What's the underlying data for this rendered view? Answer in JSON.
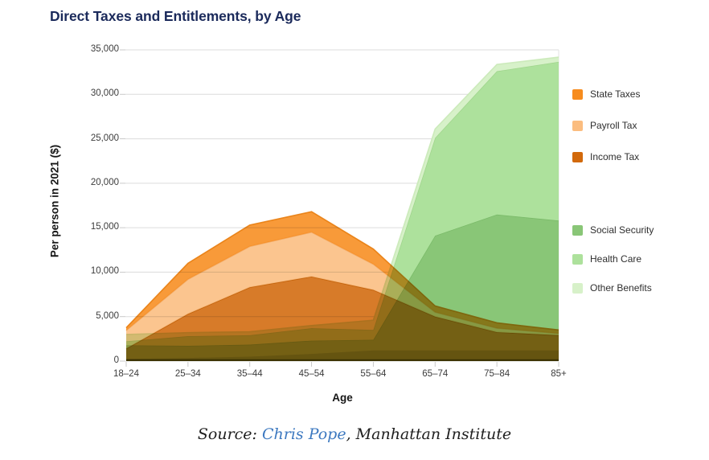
{
  "page": {
    "title": "Direct Taxes and Entitlements, by Age"
  },
  "axes": {
    "y_label": "Per person in 2021 ($)",
    "x_label": "Age",
    "ytick_labels": [
      "0",
      "5,000",
      "10,000",
      "15,000",
      "20,000",
      "25,000",
      "30,000",
      "35,000"
    ]
  },
  "legend": {
    "taxes": [
      {
        "label": "State Taxes",
        "color": "#F78C1E"
      },
      {
        "label": "Payroll Tax",
        "color": "#FBBD7F"
      },
      {
        "label": "Income Tax",
        "color": "#D2690B"
      }
    ],
    "benefits": [
      {
        "label": "Social Security",
        "color": "#89C677"
      },
      {
        "label": "Health Care",
        "color": "#ADE19C"
      },
      {
        "label": "Other Benefits",
        "color": "#D7F1C9"
      }
    ]
  },
  "source": {
    "prefix": "Source: ",
    "link_text": "Chris Pope",
    "suffix": ", Manhattan Institute",
    "link_color": "#3D79C0"
  },
  "chart_data": {
    "type": "area",
    "title": "Direct Taxes and Entitlements, by Age",
    "xlabel": "Age",
    "ylabel": "Per person in 2021 ($)",
    "categories": [
      "18–24",
      "25–34",
      "35–44",
      "45–54",
      "55–64",
      "65–74",
      "75–84",
      "85+"
    ],
    "ylim": [
      0,
      35000
    ],
    "yticks": [
      0,
      5000,
      10000,
      15000,
      20000,
      25000,
      30000,
      35000
    ],
    "grid": true,
    "legend_position": "right",
    "stacking": "two stacked groups (benefits greens, taxes oranges) overlaid; taxes drawn translucent/multiply over benefits",
    "groups": [
      {
        "name": "benefits",
        "blend": "normal",
        "fill_opacity": 1,
        "series": [
          {
            "name": "Social Security",
            "color": "#89C677",
            "stroke": "#79B967",
            "values": [
              1780,
              1720,
              1850,
              2300,
              2400,
              14100,
              16480,
              15800
            ]
          },
          {
            "name": "Health Care",
            "color": "#ADE19C",
            "stroke": "#9ED48B",
            "values": [
              450,
              1080,
              1050,
              1400,
              1100,
              11000,
              16120,
              17860
            ]
          },
          {
            "name": "Other Benefits",
            "color": "#D7F1C9",
            "stroke": "#C9E9B7",
            "values": [
              760,
              400,
              400,
              300,
              1100,
              1000,
              760,
              520
            ]
          }
        ]
      },
      {
        "name": "taxes",
        "blend": "multiply",
        "fill_opacity": 0.88,
        "series": [
          {
            "name": "Income Tax",
            "color": "#D2690B",
            "stroke": "#C05E06",
            "values": [
              1400,
              5300,
              8300,
              9500,
              8000,
              5000,
              3250,
              2900
            ]
          },
          {
            "name": "Payroll Tax",
            "color": "#FBBD7F",
            "stroke": "#F2A75F",
            "values": [
              2050,
              3900,
              4600,
              5000,
              2900,
              500,
              450,
              200
            ]
          },
          {
            "name": "State Taxes",
            "color": "#F78C1E",
            "stroke": "#E87D0E",
            "values": [
              300,
              1800,
              2400,
              2300,
              1700,
              700,
              600,
              400
            ]
          }
        ]
      }
    ],
    "baseline_shade": {
      "values": [
        250,
        350,
        500,
        800,
        1200,
        1200,
        1200,
        1200
      ],
      "color": "#4B4E00",
      "opacity": 0.18
    }
  }
}
